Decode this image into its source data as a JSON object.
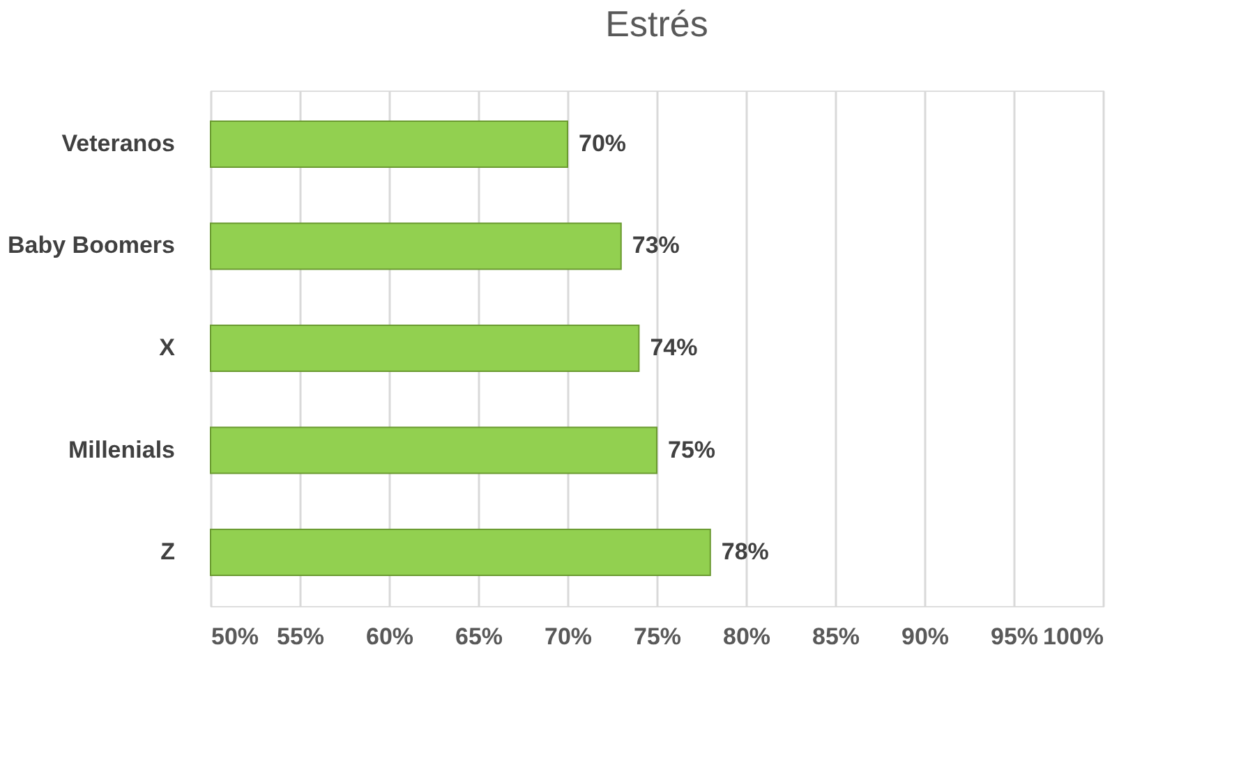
{
  "chart_data": {
    "type": "bar",
    "orientation": "horizontal",
    "title": "Estrés",
    "categories": [
      "Veteranos",
      "Baby Boomers",
      "X",
      "Millenials",
      "Z"
    ],
    "values": [
      70,
      73,
      74,
      75,
      78
    ],
    "value_labels": [
      "70%",
      "73%",
      "74%",
      "75%",
      "78%"
    ],
    "color": "#92d050",
    "xlim": [
      50,
      100
    ],
    "xticks": [
      {
        "value": 50,
        "label": "50%"
      },
      {
        "value": 55,
        "label": "55%"
      },
      {
        "value": 60,
        "label": "60%"
      },
      {
        "value": 65,
        "label": "65%"
      },
      {
        "value": 70,
        "label": "70%"
      },
      {
        "value": 75,
        "label": "75%"
      },
      {
        "value": 80,
        "label": "80%"
      },
      {
        "value": 85,
        "label": "85%"
      },
      {
        "value": 90,
        "label": "90%"
      },
      {
        "value": 95,
        "label": "95%"
      },
      {
        "value": 100,
        "label": "100%"
      }
    ],
    "grid": "x"
  }
}
